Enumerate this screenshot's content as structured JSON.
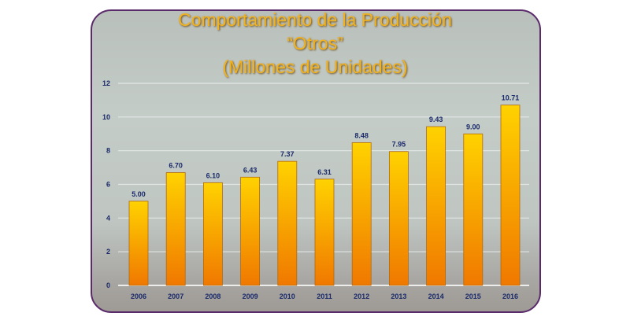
{
  "chart_data": {
    "type": "bar",
    "title": [
      "Comportamiento de la Producción",
      "“Otros”",
      "(Millones de Unidades)"
    ],
    "categories": [
      "2006",
      "2007",
      "2008",
      "2009",
      "2010",
      "2011",
      "2012",
      "2013",
      "2014",
      "2015",
      "2016"
    ],
    "values": [
      5.0,
      6.7,
      6.1,
      6.43,
      7.37,
      6.31,
      8.48,
      7.95,
      9.43,
      9.0,
      10.71
    ],
    "data_labels": [
      "5.00",
      "6.70",
      "6.10",
      "6.43",
      "7.37",
      "6.31",
      "8.48",
      "7.95",
      "9.43",
      "9.00",
      "10.71"
    ],
    "ylim": [
      0,
      12
    ],
    "yticks": [
      "0",
      "2",
      "4",
      "6",
      "8",
      "10",
      "12"
    ],
    "grid": true,
    "colors": {
      "bar_top": "#ffd200",
      "bar_bottom": "#f07800",
      "label": "#1a2a6a",
      "title": "#f2b21e",
      "frame_border": "#5a2a6a"
    }
  }
}
